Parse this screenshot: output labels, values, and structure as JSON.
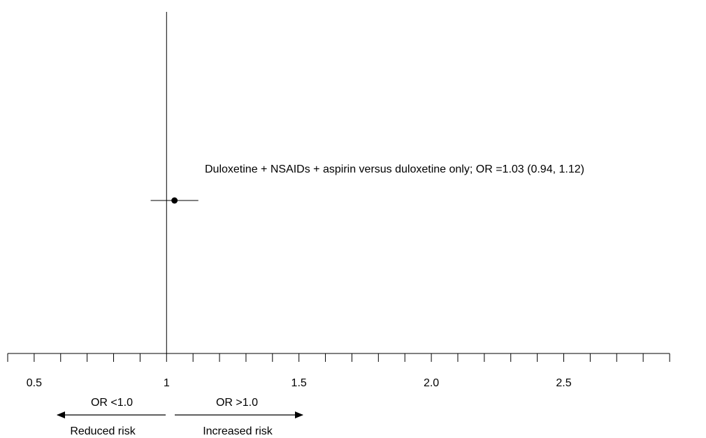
{
  "chart_data": {
    "type": "forest",
    "xlim": [
      0.4,
      2.9
    ],
    "grid": false,
    "x_ticks": [
      0.5,
      1,
      1.5,
      2.0,
      2.5
    ],
    "x_tick_labels": [
      "0.5",
      "1",
      "1.5",
      "2.0",
      "2.5"
    ],
    "minor_tick_step": 0.1,
    "reference_line": 1,
    "estimates": [
      {
        "label": "Duloxetine + NSAIDs + aspirin versus duloxetine only; OR =1.03 (0.94, 1.12)",
        "or": 1.03,
        "ci_low": 0.94,
        "ci_high": 1.12
      }
    ],
    "annotations": {
      "left_arrow_label": "OR <1.0",
      "left_arrow_caption": "Reduced risk",
      "right_arrow_label": "OR >1.0",
      "right_arrow_caption": "Increased risk"
    }
  }
}
